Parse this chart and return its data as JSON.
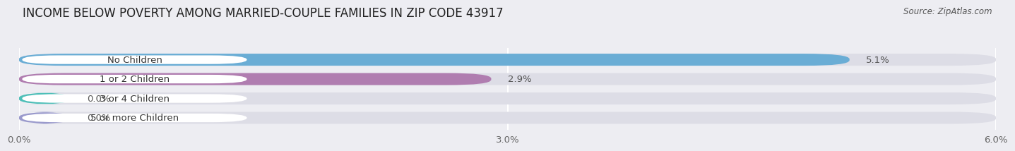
{
  "title": "INCOME BELOW POVERTY AMONG MARRIED-COUPLE FAMILIES IN ZIP CODE 43917",
  "source": "Source: ZipAtlas.com",
  "categories": [
    "No Children",
    "1 or 2 Children",
    "3 or 4 Children",
    "5 or more Children"
  ],
  "values": [
    5.1,
    2.9,
    0.0,
    0.0
  ],
  "bar_colors": [
    "#6aadd5",
    "#b07db0",
    "#4dbfb8",
    "#9999cc"
  ],
  "xlim": [
    0,
    6.0
  ],
  "xticks": [
    0.0,
    3.0,
    6.0
  ],
  "xticklabels": [
    "0.0%",
    "3.0%",
    "6.0%"
  ],
  "background_color": "#ededf2",
  "bar_background_color": "#dddde6",
  "title_fontsize": 12,
  "tick_fontsize": 9.5,
  "label_fontsize": 9.5,
  "value_fontsize": 9.5
}
